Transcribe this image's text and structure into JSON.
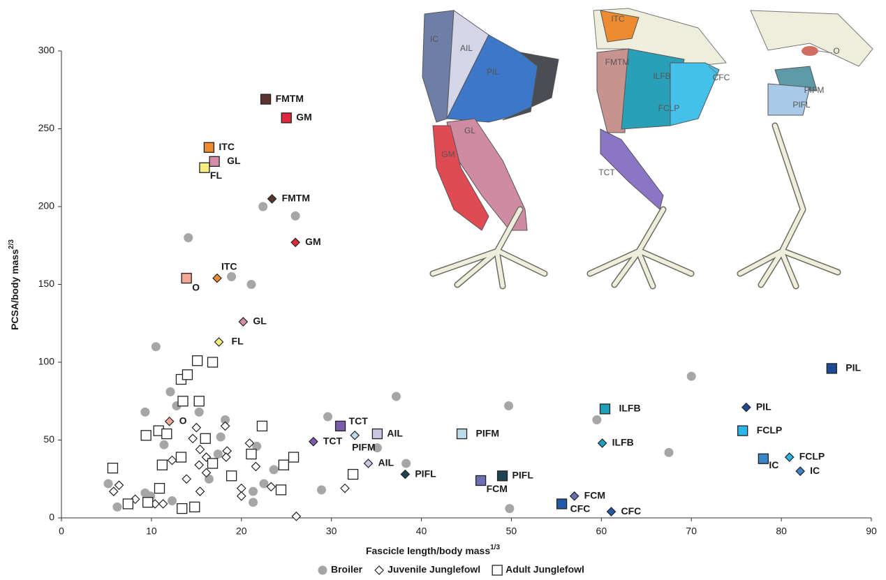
{
  "chart_data": {
    "type": "scatter",
    "x_label": "Fascicle length/body mass",
    "x_label_sup": "1/3",
    "y_label": "PCSA/body mass",
    "y_label_sup": "2/3",
    "xlim": [
      0,
      90
    ],
    "xticks": [
      0,
      10,
      20,
      30,
      40,
      50,
      60,
      70,
      80,
      90
    ],
    "ylim": [
      0,
      300
    ],
    "yticks": [
      0,
      50,
      100,
      150,
      200,
      250,
      300
    ],
    "legend": "bottom",
    "series": [
      {
        "name": "Broiler",
        "marker": "circle",
        "color": "#a6a6a6",
        "x": [
          22.4,
          26.0,
          14.1,
          18.9,
          21.1,
          10.5,
          12.1,
          9.3,
          15.3,
          12.8,
          18.2,
          11.4,
          17.7,
          21.7,
          29.6,
          37.2,
          49.7,
          70.0,
          59.5,
          67.5,
          35.1,
          38.3,
          5.2,
          6.2,
          9.3,
          9.9,
          12.3,
          10.9,
          16.4,
          17.4,
          22.5,
          23.6,
          21.3,
          21.3,
          28.9,
          49.8
        ],
        "values": [
          200,
          194,
          180,
          155,
          150,
          110,
          81,
          68,
          68,
          72,
          63,
          47,
          52,
          46,
          65,
          78,
          72,
          91,
          63,
          42,
          45,
          35,
          22,
          7,
          16,
          14,
          11,
          19,
          25,
          41,
          22,
          31,
          17,
          10,
          18,
          6
        ]
      },
      {
        "name": "Juvenile Junglefowl",
        "marker": "diamond",
        "color": "#ffffff",
        "x": [
          5.8,
          6.4,
          8.2,
          10.4,
          11.3,
          12.3,
          13.9,
          15.4,
          14.6,
          15.0,
          15.4,
          15.3,
          16.1,
          16.1,
          18.2,
          18.4,
          18.3,
          20.0,
          20.0,
          20.9,
          21.6,
          23.3,
          26.1,
          31.5,
          23.4,
          26.0,
          17.3,
          20.2,
          17.5,
          12.0,
          28.0,
          32.6,
          34.1,
          38.2,
          57.0,
          61.1,
          60.1,
          76.1,
          80.9,
          82.1
        ],
        "values": [
          17,
          21,
          12,
          9,
          9,
          37,
          25,
          17,
          51,
          58,
          44,
          34,
          39,
          29,
          59,
          43,
          39,
          19,
          14,
          48,
          33,
          20,
          1,
          19,
          205,
          177,
          154,
          126,
          113,
          62,
          49,
          53,
          35,
          28,
          14,
          4,
          48,
          71,
          39,
          30
        ],
        "labels": [
          null,
          null,
          null,
          null,
          null,
          null,
          null,
          null,
          null,
          null,
          null,
          null,
          null,
          null,
          null,
          null,
          null,
          null,
          null,
          null,
          null,
          null,
          null,
          null,
          "FMTM",
          "GM",
          "ITC",
          "GL",
          "FL",
          "O",
          "TCT",
          "PIFM",
          "AIL",
          "PIFL",
          "FCM",
          "CFC",
          "ILFB",
          "PIL",
          "FCLP",
          "IC"
        ],
        "colors": [
          null,
          null,
          null,
          null,
          null,
          null,
          null,
          null,
          null,
          null,
          null,
          null,
          null,
          null,
          null,
          null,
          null,
          null,
          null,
          null,
          null,
          null,
          null,
          null,
          "#5c3330",
          "#e0283c",
          "#ee8a30",
          "#d48ca8",
          "#f6ee84",
          "#f2a896",
          "#7a5cae",
          "#bcdcec",
          "#c8c6e2",
          "#1c4452",
          "#6a70b0",
          "#2458a8",
          "#1fa0b8",
          "#1e4c94",
          "#2ab6e6",
          "#3a86c8"
        ]
      },
      {
        "name": "Adult Junglefowl",
        "marker": "square",
        "color": "#ffffff",
        "x": [
          5.7,
          7.4,
          9.4,
          9.6,
          10.8,
          10.9,
          11.2,
          11.7,
          13.3,
          13.5,
          13.3,
          13.4,
          14.0,
          14.8,
          15.1,
          15.3,
          16.0,
          16.8,
          16.8,
          18.9,
          21.1,
          22.3,
          24.4,
          24.7,
          25.8,
          32.4,
          22.7,
          25.0,
          16.4,
          17.0,
          15.9,
          13.9,
          31.0,
          35.1,
          44.5,
          46.6,
          49.0,
          55.6,
          60.4,
          75.7,
          78.0,
          85.6
        ],
        "values": [
          32,
          9,
          53,
          10,
          56,
          19,
          34,
          54,
          89,
          75,
          39,
          6,
          92,
          7,
          101,
          75,
          51,
          100,
          35,
          27,
          41,
          59,
          18,
          34,
          39,
          28,
          269,
          257,
          238,
          229,
          225,
          154,
          59,
          54,
          54,
          24,
          27,
          9,
          70,
          56,
          38,
          96
        ],
        "labels": [
          null,
          null,
          null,
          null,
          null,
          null,
          null,
          null,
          null,
          null,
          null,
          null,
          null,
          null,
          null,
          null,
          null,
          null,
          null,
          null,
          null,
          null,
          null,
          null,
          null,
          null,
          "FMTM",
          "GM",
          "ITC",
          "GL",
          "FL",
          "O",
          "TCT",
          "AIL",
          "PIFM",
          "FCM",
          "PIFL",
          "CFC",
          "ILFB",
          "FCLP",
          "IC",
          "PIL"
        ],
        "colors": [
          null,
          null,
          null,
          null,
          null,
          null,
          null,
          null,
          null,
          null,
          null,
          null,
          null,
          null,
          null,
          null,
          null,
          null,
          null,
          null,
          null,
          null,
          null,
          null,
          null,
          null,
          "#5c3330",
          "#e0283c",
          "#ee8a30",
          "#d48ca8",
          "#f6ee84",
          "#f2a896",
          "#7a5cae",
          "#c8c6e2",
          "#bcdcec",
          "#6a70b0",
          "#1c4452",
          "#2458a8",
          "#1fa0b8",
          "#2ab6e6",
          "#3a86c8",
          "#1e4c94"
        ]
      }
    ]
  },
  "illustrations": [
    {
      "labels": [
        "IC",
        "AIL",
        "PIL",
        "GL",
        "GM"
      ]
    },
    {
      "labels": [
        "ITC",
        "FMTM",
        "ILFB",
        "FCLP",
        "CFC",
        "TCT"
      ]
    },
    {
      "labels": [
        "O",
        "PIFM",
        "PIFL"
      ]
    }
  ]
}
